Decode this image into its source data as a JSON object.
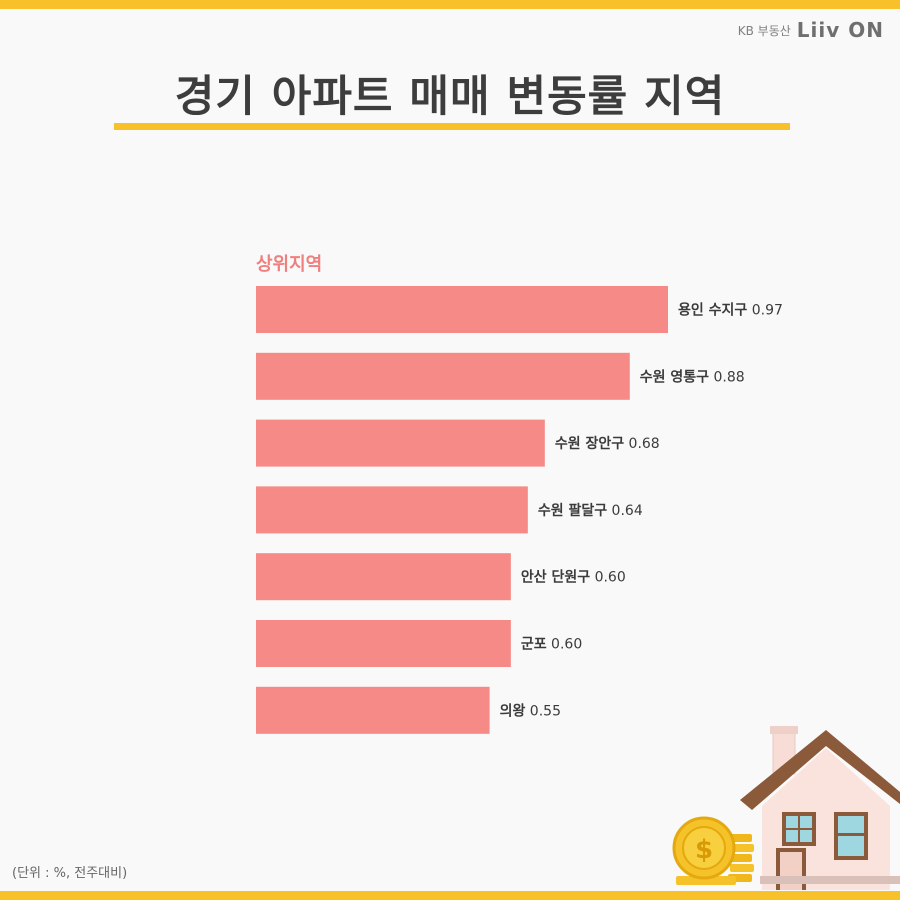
{
  "brand": {
    "company": "KB 부동산",
    "logo": "Liiv ON"
  },
  "title": "경기 아파트 매매 변동률 지역",
  "unit_note": "(단위 : %, 전주대비)",
  "colors": {
    "accent": "#f8c12a",
    "bar": "#f58a87",
    "panel_title": "#f07f7f",
    "title_text": "#3d3d3d",
    "background": "#f9f9f9"
  },
  "chart_data": {
    "type": "bar",
    "orientation": "horizontal",
    "title": "상위지역",
    "categories": [
      "용인 수지구",
      "수원 영통구",
      "수원 장안구",
      "수원 팔달구",
      "안산 단원구",
      "군포",
      "의왕"
    ],
    "values": [
      0.97,
      0.88,
      0.68,
      0.64,
      0.6,
      0.6,
      0.55
    ],
    "value_labels": [
      "0.97",
      "0.88",
      "0.68",
      "0.64",
      "0.60",
      "0.60",
      "0.55"
    ],
    "xlim": [
      0,
      0.97
    ],
    "grid": false
  },
  "illustration": {
    "icons": [
      "house-icon",
      "coin-icon",
      "dollar-icon"
    ]
  }
}
